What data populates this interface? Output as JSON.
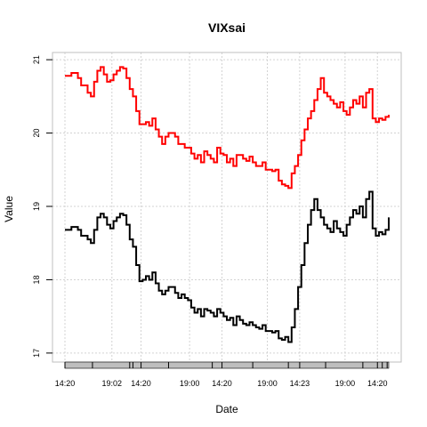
{
  "chart_data": {
    "type": "line",
    "title": "VIXsai",
    "xlabel": "Date",
    "ylabel": "Value",
    "ylim": [
      16.95,
      21.05
    ],
    "xlim": [
      0,
      100
    ],
    "yticks": [
      17,
      18,
      19,
      20,
      21
    ],
    "xticks": [
      {
        "pos": 0,
        "label": "14:20"
      },
      {
        "pos": 14.5,
        "label": "19:02"
      },
      {
        "pos": 23.5,
        "label": "14:20"
      },
      {
        "pos": 38.5,
        "label": "19:00"
      },
      {
        "pos": 48.5,
        "label": "14:20"
      },
      {
        "pos": 62.5,
        "label": "19:00"
      },
      {
        "pos": 72.5,
        "label": "14:23"
      },
      {
        "pos": 86.5,
        "label": "19:00"
      },
      {
        "pos": 96.5,
        "label": "14:20"
      }
    ],
    "minor_ticks": [
      0,
      8.5,
      20,
      21,
      23.5,
      32,
      45.5,
      48.5,
      58,
      69,
      72.5,
      80.5,
      92,
      96.5,
      98,
      99.5
    ],
    "grid": true,
    "series": [
      {
        "color": "#ff0000",
        "x": [
          0,
          2,
          4,
          5,
          7,
          8,
          9,
          10,
          11,
          12,
          13,
          14,
          15,
          16,
          17,
          18,
          19,
          20,
          21,
          22,
          23,
          24,
          25,
          26,
          27,
          28,
          29,
          30,
          31,
          32,
          33,
          34,
          35,
          36,
          37,
          38,
          39,
          40,
          41,
          42,
          43,
          44,
          45,
          46,
          47,
          48,
          49,
          50,
          51,
          52,
          53,
          54,
          55,
          56,
          57,
          58,
          59,
          60,
          61,
          62,
          63,
          64,
          65,
          66,
          67,
          68,
          69,
          70,
          71,
          72,
          73,
          74,
          75,
          76,
          77,
          78,
          79,
          80,
          81,
          82,
          83,
          84,
          85,
          86,
          87,
          88,
          89,
          90,
          91,
          92,
          93,
          94,
          95,
          96,
          97,
          98,
          99,
          100
        ],
        "y": [
          20.78,
          20.82,
          20.75,
          20.65,
          20.55,
          20.5,
          20.7,
          20.85,
          20.9,
          20.8,
          20.7,
          20.72,
          20.8,
          20.85,
          20.9,
          20.88,
          20.75,
          20.6,
          20.5,
          20.3,
          20.12,
          20.12,
          20.15,
          20.1,
          20.2,
          20.05,
          19.95,
          19.85,
          19.95,
          20.0,
          20.0,
          19.95,
          19.85,
          19.85,
          19.8,
          19.8,
          19.72,
          19.65,
          19.7,
          19.6,
          19.75,
          19.7,
          19.65,
          19.6,
          19.8,
          19.72,
          19.7,
          19.6,
          19.65,
          19.55,
          19.7,
          19.7,
          19.65,
          19.62,
          19.68,
          19.6,
          19.55,
          19.55,
          19.6,
          19.5,
          19.5,
          19.48,
          19.5,
          19.35,
          19.3,
          19.28,
          19.25,
          19.45,
          19.55,
          19.7,
          19.9,
          20.05,
          20.2,
          20.3,
          20.45,
          20.6,
          20.75,
          20.55,
          20.5,
          20.45,
          20.4,
          20.35,
          20.42,
          20.3,
          20.25,
          20.35,
          20.45,
          20.4,
          20.5,
          20.35,
          20.55,
          20.6,
          20.2,
          20.15,
          20.2,
          20.18,
          20.22,
          20.25
        ]
      },
      {
        "color": "#000000",
        "x": [
          0,
          2,
          4,
          5,
          7,
          8,
          9,
          10,
          11,
          12,
          13,
          14,
          15,
          16,
          17,
          18,
          19,
          20,
          21,
          22,
          23,
          24,
          25,
          26,
          27,
          28,
          29,
          30,
          31,
          32,
          33,
          34,
          35,
          36,
          37,
          38,
          39,
          40,
          41,
          42,
          43,
          44,
          45,
          46,
          47,
          48,
          49,
          50,
          51,
          52,
          53,
          54,
          55,
          56,
          57,
          58,
          59,
          60,
          61,
          62,
          63,
          64,
          65,
          66,
          67,
          68,
          69,
          70,
          71,
          72,
          73,
          74,
          75,
          76,
          77,
          78,
          79,
          80,
          81,
          82,
          83,
          84,
          85,
          86,
          87,
          88,
          89,
          90,
          91,
          92,
          93,
          94,
          95,
          96,
          97,
          98,
          99,
          100
        ],
        "y": [
          18.68,
          18.72,
          18.68,
          18.6,
          18.55,
          18.5,
          18.68,
          18.85,
          18.9,
          18.85,
          18.75,
          18.7,
          18.8,
          18.85,
          18.9,
          18.88,
          18.75,
          18.55,
          18.45,
          18.2,
          17.98,
          18.0,
          18.05,
          18.0,
          18.1,
          17.95,
          17.85,
          17.8,
          17.85,
          17.9,
          17.9,
          17.82,
          17.75,
          17.8,
          17.75,
          17.72,
          17.62,
          17.55,
          17.6,
          17.5,
          17.6,
          17.58,
          17.55,
          17.5,
          17.6,
          17.55,
          17.5,
          17.45,
          17.48,
          17.38,
          17.5,
          17.45,
          17.4,
          17.38,
          17.42,
          17.38,
          17.35,
          17.33,
          17.38,
          17.3,
          17.3,
          17.28,
          17.3,
          17.2,
          17.18,
          17.22,
          17.15,
          17.35,
          17.6,
          17.9,
          18.2,
          18.5,
          18.75,
          18.95,
          19.1,
          18.95,
          18.85,
          18.75,
          18.7,
          18.65,
          18.8,
          18.7,
          18.65,
          18.6,
          18.75,
          18.85,
          18.95,
          18.9,
          19.0,
          18.85,
          19.1,
          19.2,
          18.7,
          18.6,
          18.65,
          18.62,
          18.68,
          18.85
        ]
      }
    ]
  }
}
